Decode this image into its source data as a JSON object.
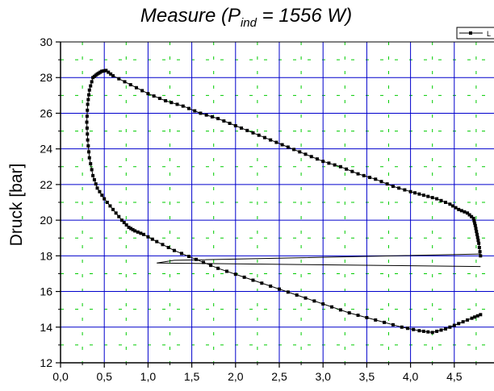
{
  "chart_data": {
    "type": "line",
    "title": {
      "prefix": "Measure (P",
      "subscript": "ind",
      "suffix": " = 1556 W)"
    },
    "ylabel": "Druck [bar]",
    "xlabel": "",
    "xlim": [
      0.0,
      4.8
    ],
    "ylim": [
      12,
      30
    ],
    "x_ticks": [
      "0,0",
      "0,5",
      "1,0",
      "1,5",
      "2,0",
      "2,5",
      "3,0",
      "3,5",
      "4,0",
      "4,5"
    ],
    "y_ticks": [
      "12",
      "14",
      "16",
      "18",
      "20",
      "22",
      "24",
      "26",
      "28",
      "30"
    ],
    "grid": {
      "major_color": "#0000cc",
      "minor_color": "#00cc00",
      "minor_style": "dashed"
    },
    "legend": {
      "position": "top-right",
      "label": "L",
      "clipped": true
    },
    "series": [
      {
        "marker": "square",
        "color": "#000000",
        "x": [
          4.8,
          4.78,
          4.76,
          4.74,
          4.72,
          4.65,
          4.55,
          4.45,
          4.3,
          4.15,
          4.0,
          3.8,
          3.6,
          3.4,
          3.2,
          3.0,
          2.8,
          2.6,
          2.4,
          2.2,
          2.0,
          1.8,
          1.6,
          1.4,
          1.2,
          1.0,
          0.8,
          0.6,
          0.52,
          0.47,
          0.42,
          0.37,
          0.33,
          0.31,
          0.3,
          0.31,
          0.33,
          0.37,
          0.42,
          0.5,
          0.6,
          0.7,
          0.78,
          0.85,
          0.95,
          1.1,
          1.3,
          1.55,
          1.8,
          2.1,
          2.4,
          2.7,
          3.0,
          3.3,
          3.6,
          3.9,
          4.1,
          4.25,
          4.4,
          4.55,
          4.7,
          4.8
        ],
        "y": [
          18.0,
          18.7,
          19.2,
          19.7,
          20.1,
          20.4,
          20.6,
          20.9,
          21.2,
          21.4,
          21.6,
          21.9,
          22.3,
          22.6,
          23.0,
          23.3,
          23.7,
          24.1,
          24.5,
          24.9,
          25.3,
          25.7,
          26.0,
          26.4,
          26.7,
          27.1,
          27.6,
          28.1,
          28.4,
          28.35,
          28.2,
          28.0,
          27.3,
          26.5,
          25.5,
          24.5,
          23.5,
          22.5,
          21.8,
          21.2,
          20.6,
          20.0,
          19.6,
          19.4,
          19.2,
          18.8,
          18.3,
          17.8,
          17.3,
          16.8,
          16.3,
          15.8,
          15.3,
          14.8,
          14.4,
          14.0,
          13.8,
          13.7,
          13.9,
          14.2,
          14.5,
          14.7
        ]
      },
      {
        "marker": "none",
        "color": "#000000",
        "x": [
          4.8,
          1.3,
          1.1,
          4.8
        ],
        "y": [
          18.1,
          17.75,
          17.6,
          17.4
        ]
      }
    ]
  }
}
